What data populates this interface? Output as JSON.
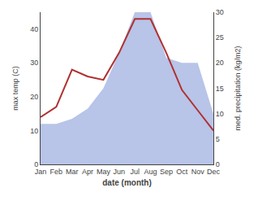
{
  "chart_data": {
    "type": "line",
    "categories": [
      "Jan",
      "Feb",
      "Mar",
      "Apr",
      "May",
      "Jun",
      "Jul",
      "Aug",
      "Sep",
      "Oct",
      "Nov",
      "Dec"
    ],
    "series": [
      {
        "type": "area",
        "axis": "y2",
        "color": "#b8c4e8",
        "values": [
          8,
          8,
          9,
          11,
          15,
          22,
          30,
          30,
          21,
          20,
          20,
          10
        ]
      },
      {
        "type": "line",
        "color": "#b03030",
        "values": [
          14,
          17,
          28,
          26,
          25,
          33,
          43,
          43,
          33,
          22,
          16,
          10
        ]
      }
    ],
    "xlabel": "date (month)",
    "ylabel": "max temp (C)",
    "y2label": "med. precipitation (kg/m2)",
    "ylim": [
      0,
      45
    ],
    "yticks": [
      0,
      10,
      20,
      30,
      40
    ],
    "y2lim": [
      0,
      30
    ],
    "y2ticks": [
      0,
      5,
      10,
      15,
      20,
      25,
      30
    ],
    "grid": false
  }
}
